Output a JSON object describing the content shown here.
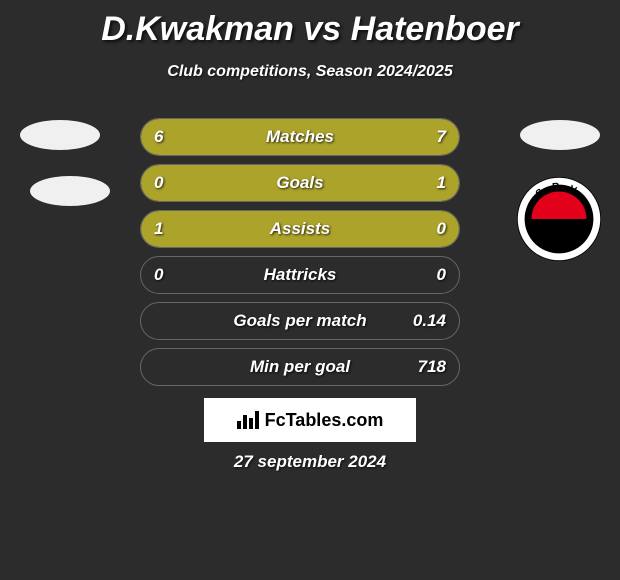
{
  "title": "D.Kwakman vs Hatenboer",
  "subtitle": "Club competitions, Season 2024/2025",
  "date": "27 september 2024",
  "branding": "FcTables.com",
  "colors": {
    "left_bar": "#aca32b",
    "right_bar": "#aca32b",
    "track_border": "#666666",
    "background": "#2c2c2c",
    "text": "#ffffff",
    "box_bg": "#ffffff"
  },
  "excelsior": {
    "outer": "#000000",
    "inner_top": "#e2001a",
    "inner_bottom": "#000000",
    "text": "S.B.V. EXCELSIOR",
    "text_color": "#ffffff"
  },
  "stats": [
    {
      "label": "Matches",
      "left_display": "6",
      "right_display": "7",
      "left_pct": 46,
      "right_pct": 54
    },
    {
      "label": "Goals",
      "left_display": "0",
      "right_display": "1",
      "left_pct": 20,
      "right_pct": 80
    },
    {
      "label": "Assists",
      "left_display": "1",
      "right_display": "0",
      "left_pct": 82,
      "right_pct": 18
    },
    {
      "label": "Hattricks",
      "left_display": "0",
      "right_display": "0",
      "left_pct": 0,
      "right_pct": 0
    },
    {
      "label": "Goals per match",
      "left_display": "",
      "right_display": "0.14",
      "left_pct": 0,
      "right_pct": 0
    },
    {
      "label": "Min per goal",
      "left_display": "",
      "right_display": "718",
      "left_pct": 0,
      "right_pct": 0
    }
  ]
}
